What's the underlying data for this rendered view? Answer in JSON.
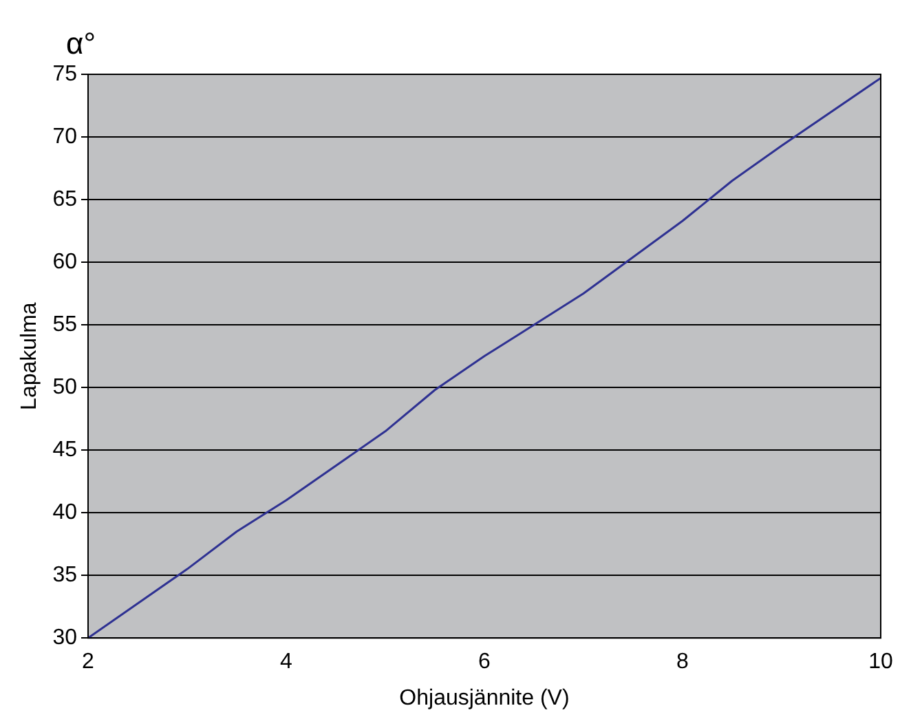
{
  "chart_data": {
    "type": "line",
    "xlabel": "Ohjausjännite (V)",
    "ylabel": "Lapakulma",
    "annotations": [
      "α°"
    ],
    "x": [
      2,
      3,
      3.5,
      4,
      5,
      5.5,
      6,
      7,
      8,
      8.5,
      9,
      10
    ],
    "series": [
      {
        "color": "#2e3192",
        "values": [
          30,
          35.5,
          38.5,
          41,
          46.5,
          49.8,
          52.5,
          57.5,
          63.3,
          66.5,
          69.3,
          74.7
        ]
      }
    ],
    "xlim": [
      2,
      10
    ],
    "xticks": [
      2,
      4,
      6,
      8,
      10
    ],
    "ylim": [
      30,
      75
    ],
    "yticks": [
      30,
      35,
      40,
      45,
      50,
      55,
      60,
      65,
      70,
      75
    ],
    "grid": "y",
    "legend": false,
    "marker": "none",
    "line_style": "solid"
  }
}
